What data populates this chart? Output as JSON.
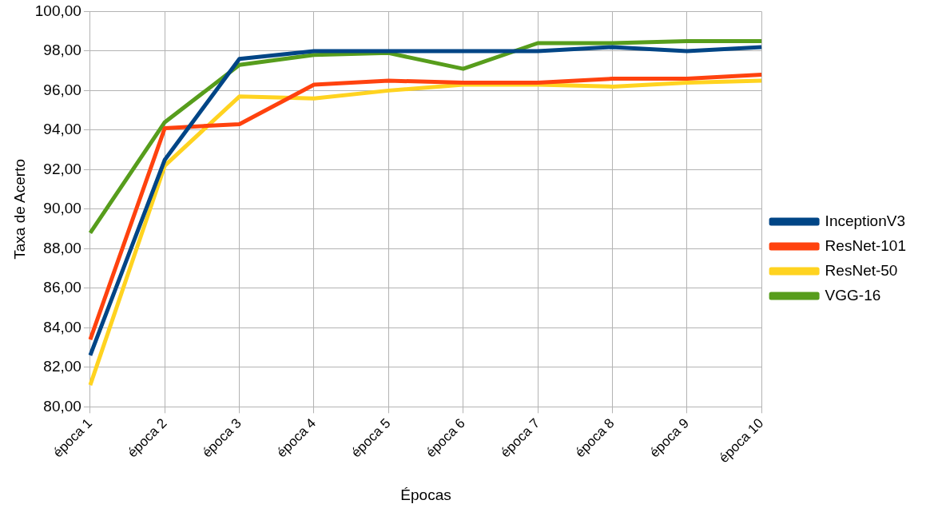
{
  "chart_data": {
    "type": "line",
    "xlabel": "Épocas",
    "ylabel": "Taxa de Acerto",
    "categories": [
      "época 1",
      "época 2",
      "época 3",
      "época 4",
      "época 5",
      "época 6",
      "época 7",
      "época 8",
      "época 9",
      "época 10"
    ],
    "series": [
      {
        "name": "InceptionV3",
        "color": "#004586",
        "values": [
          82.6,
          92.5,
          97.6,
          98.0,
          98.0,
          98.0,
          98.0,
          98.2,
          98.0,
          98.2
        ]
      },
      {
        "name": "ResNet-101",
        "color": "#ff420e",
        "values": [
          83.4,
          94.1,
          94.3,
          96.3,
          96.5,
          96.4,
          96.4,
          96.6,
          96.6,
          96.8
        ]
      },
      {
        "name": "ResNet-50",
        "color": "#ffd320",
        "values": [
          81.1,
          92.2,
          95.7,
          95.6,
          96.0,
          96.3,
          96.3,
          96.2,
          96.4,
          96.5
        ]
      },
      {
        "name": "VGG-16",
        "color": "#579d1c",
        "values": [
          88.8,
          94.4,
          97.3,
          97.8,
          97.9,
          97.1,
          98.4,
          98.4,
          98.5,
          98.5
        ]
      }
    ],
    "ylim": [
      80,
      100
    ],
    "yticks": [
      {
        "value": 80,
        "label": "80,00"
      },
      {
        "value": 82,
        "label": "82,00"
      },
      {
        "value": 84,
        "label": "84,00"
      },
      {
        "value": 86,
        "label": "86,00"
      },
      {
        "value": 88,
        "label": "88,00"
      },
      {
        "value": 90,
        "label": "90,00"
      },
      {
        "value": 92,
        "label": "92,00"
      },
      {
        "value": 94,
        "label": "94,00"
      },
      {
        "value": 96,
        "label": "96,00"
      },
      {
        "value": 98,
        "label": "98,00"
      },
      {
        "value": 100,
        "label": "100,00"
      }
    ],
    "grid": true,
    "legend": "right",
    "marker": "none",
    "line_style": "solid"
  }
}
